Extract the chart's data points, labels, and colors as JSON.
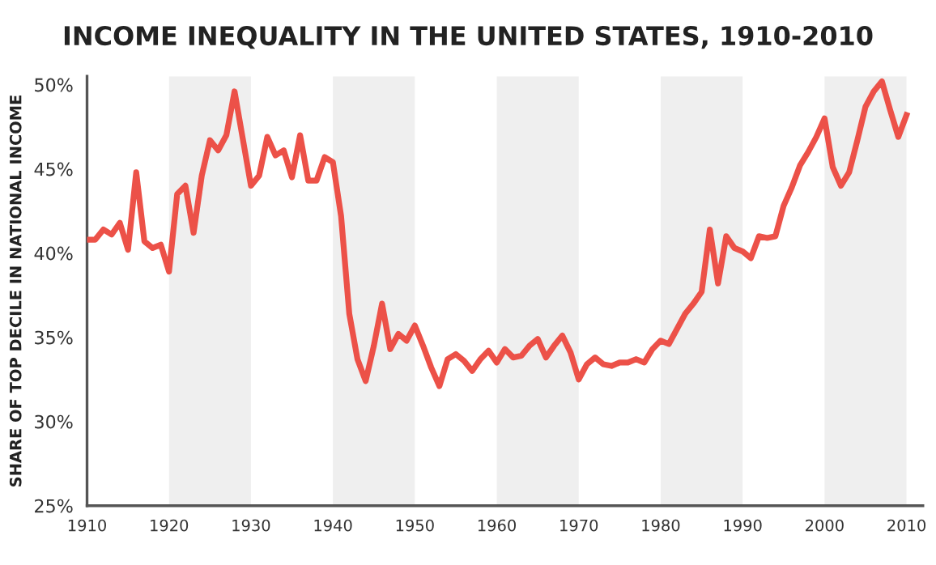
{
  "chart_data": {
    "type": "line",
    "title": "INCOME INEQUALITY IN THE UNITED STATES, 1910-2010",
    "ylabel": "SHARE OF TOP DECILE IN NATIONAL INCOME",
    "x": [
      1910,
      1911,
      1912,
      1913,
      1914,
      1915,
      1916,
      1917,
      1918,
      1919,
      1920,
      1921,
      1922,
      1923,
      1924,
      1925,
      1926,
      1927,
      1928,
      1929,
      1930,
      1931,
      1932,
      1933,
      1934,
      1935,
      1936,
      1937,
      1938,
      1939,
      1940,
      1941,
      1942,
      1943,
      1944,
      1945,
      1946,
      1947,
      1948,
      1949,
      1950,
      1951,
      1952,
      1953,
      1954,
      1955,
      1956,
      1957,
      1958,
      1959,
      1960,
      1961,
      1962,
      1963,
      1964,
      1965,
      1966,
      1967,
      1968,
      1969,
      1970,
      1971,
      1972,
      1973,
      1974,
      1975,
      1976,
      1977,
      1978,
      1979,
      1980,
      1981,
      1982,
      1983,
      1984,
      1985,
      1986,
      1987,
      1988,
      1989,
      1990,
      1991,
      1992,
      1993,
      1994,
      1995,
      1996,
      1997,
      1998,
      1999,
      2000,
      2001,
      2002,
      2003,
      2004,
      2005,
      2006,
      2007,
      2008,
      2009,
      2010
    ],
    "series": [
      {
        "color": "#ec5148",
        "values": [
          40.8,
          40.8,
          41.4,
          41.1,
          41.8,
          40.2,
          44.8,
          40.7,
          40.3,
          40.5,
          38.9,
          43.5,
          44.0,
          41.2,
          44.6,
          46.7,
          46.1,
          47.0,
          49.6,
          46.8,
          44.0,
          44.6,
          46.9,
          45.8,
          46.1,
          44.5,
          47.0,
          44.3,
          44.3,
          45.7,
          45.4,
          42.2,
          36.4,
          33.7,
          32.4,
          34.5,
          37.0,
          34.3,
          35.2,
          34.8,
          35.7,
          34.5,
          33.2,
          32.1,
          33.7,
          34.0,
          33.6,
          33.0,
          33.7,
          34.2,
          33.5,
          34.3,
          33.8,
          33.9,
          34.5,
          34.9,
          33.8,
          34.5,
          35.1,
          34.1,
          32.5,
          33.4,
          33.8,
          33.4,
          33.3,
          33.5,
          33.5,
          33.7,
          33.5,
          34.3,
          34.8,
          34.6,
          35.5,
          36.4,
          37.0,
          37.7,
          41.4,
          38.2,
          41.0,
          40.3,
          40.1,
          39.7,
          41.0,
          40.9,
          41.0,
          42.8,
          43.9,
          45.2,
          46.0,
          46.9,
          48.0,
          45.1,
          44.0,
          44.8,
          46.7,
          48.7,
          49.6,
          50.2,
          48.5,
          46.9,
          48.2
        ]
      }
    ],
    "xlim": [
      1910,
      2012
    ],
    "ylim": [
      25,
      50.5
    ],
    "xticks": [
      1910,
      1920,
      1930,
      1940,
      1950,
      1960,
      1970,
      1980,
      1990,
      2000,
      2010
    ],
    "yticks": [
      {
        "value": 25,
        "label": "25%"
      },
      {
        "value": 30,
        "label": "30%"
      },
      {
        "value": 35,
        "label": "35%"
      },
      {
        "value": 40,
        "label": "40%"
      },
      {
        "value": 45,
        "label": "45%"
      },
      {
        "value": 50,
        "label": "50%"
      }
    ],
    "bands": [
      {
        "axis": "x",
        "from": 1920,
        "to": 1930,
        "color": "#efefef"
      },
      {
        "axis": "x",
        "from": 1940,
        "to": 1950,
        "color": "#efefef"
      },
      {
        "axis": "x",
        "from": 1960,
        "to": 1970,
        "color": "#efefef"
      },
      {
        "axis": "x",
        "from": 1980,
        "to": 1990,
        "color": "#efefef"
      },
      {
        "axis": "x",
        "from": 2000,
        "to": 2010,
        "color": "#efefef"
      }
    ],
    "grid": false,
    "legend": false,
    "marker": "none",
    "line_style": "solid"
  }
}
